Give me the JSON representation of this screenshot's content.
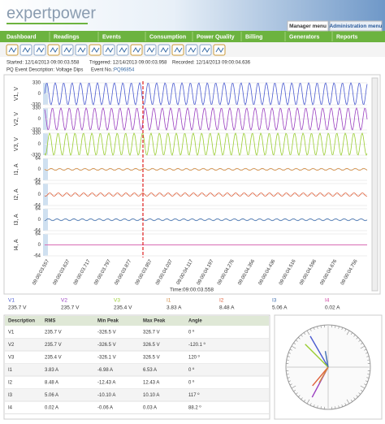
{
  "header": {
    "logo": "expertpower",
    "tabs": [
      "Manager menu",
      "Administration menu"
    ]
  },
  "nav": [
    "Dashboard",
    "Readings",
    "Events",
    "Consumption",
    "Power Quality",
    "Billing",
    "Generators",
    "Reports"
  ],
  "info": {
    "started": "Started: 12/14/2013 09:00:03.558",
    "triggered": "Triggered: 12/14/2013 09:00:03.958",
    "recorded": "Recorded: 12/14/2013 09:00:04.636",
    "description": "PQ Event Description: Voltage Dips",
    "event_no_label": "Event No.:",
    "event_no": "PQ96854"
  },
  "waveforms": [
    {
      "label": "V1, V",
      "ticks": [
        "330",
        "0",
        "-330"
      ],
      "color": "#4a5bd0"
    },
    {
      "label": "V2, V",
      "ticks": [
        "330",
        "0",
        "-330"
      ],
      "color": "#9a3fc0"
    },
    {
      "label": "V3, V",
      "ticks": [
        "330",
        "0",
        "-330"
      ],
      "color": "#9acd32"
    },
    {
      "label": "I1, A",
      "ticks": [
        "64",
        "0",
        "-64"
      ],
      "color": "#d28a40"
    },
    {
      "label": "I2, A",
      "ticks": [
        "64",
        "0",
        "-64"
      ],
      "color": "#e0603a"
    },
    {
      "label": "I3, A",
      "ticks": [
        "64",
        "0",
        "-64"
      ],
      "color": "#4070b0"
    },
    {
      "label": "I4, A",
      "ticks": [
        "64",
        "0",
        "-64"
      ],
      "color": "#d040a0"
    }
  ],
  "time_ticks": [
    "09:00:03.557",
    "09:00:03.637",
    "09:00:03.717",
    "09:00:03.797",
    "09:00:03.877",
    "09:00:03.957",
    "09:00:04.037",
    "09:00:04.117",
    "09:00:04.197",
    "09:00:04.276",
    "09:00:04.356",
    "09:00:04.436",
    "09:00:04.516",
    "09:00:04.596",
    "09:00:04.676",
    "09:00:04.756"
  ],
  "time_label": "Time:09:00:03.558",
  "readouts": [
    {
      "name": "V1",
      "value": "235.7 V"
    },
    {
      "name": "V2",
      "value": "235.7 V"
    },
    {
      "name": "V3",
      "value": "235.4 V"
    },
    {
      "name": "I1",
      "value": "3.83 A"
    },
    {
      "name": "I2",
      "value": "8.48 A"
    },
    {
      "name": "I3",
      "value": "5.06 A"
    },
    {
      "name": "I4",
      "value": "0.02 A"
    }
  ],
  "table": {
    "header": [
      "Description",
      "RMS",
      "Min Peak",
      "Max Peak",
      "Angle"
    ],
    "rows": [
      [
        "V1",
        "235.7 V",
        "-326.5 V",
        "326.7 V",
        "0 º"
      ],
      [
        "V2",
        "235.7 V",
        "-326.5 V",
        "326.5 V",
        "-120.1 º"
      ],
      [
        "V3",
        "235.4 V",
        "-326.1 V",
        "326.5 V",
        "120 º"
      ],
      [
        "I1",
        "3.83 A",
        "-6.98 A",
        "6.53 A",
        "0 º"
      ],
      [
        "I2",
        "8.48 A",
        "-12.43 A",
        "12.43 A",
        "0 º"
      ],
      [
        "I3",
        "5.06 A",
        "-10.10 A",
        "10.10 A",
        "117 º"
      ],
      [
        "I4",
        "0.02 A",
        "-0.06 A",
        "0.03 A",
        "88.2 º"
      ]
    ]
  }
}
